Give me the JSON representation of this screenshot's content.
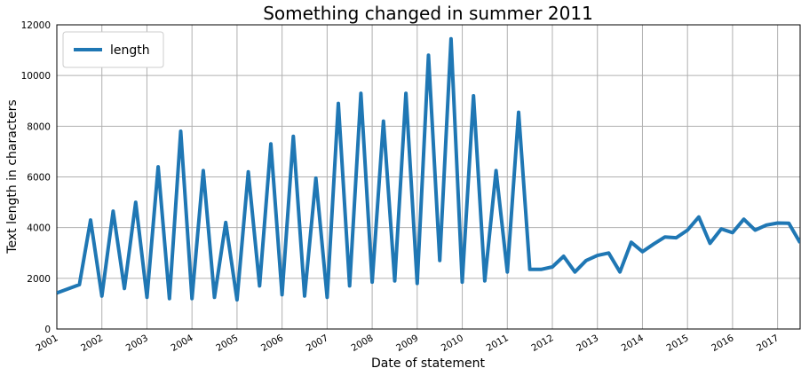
{
  "chart_data": {
    "type": "line",
    "title": "Something changed in summer 2011",
    "xlabel": "Date of statement",
    "ylabel": "Text length in characters",
    "xlim": [
      2001.0,
      2017.5
    ],
    "ylim": [
      0,
      12000
    ],
    "x_tick_labels": [
      "2001",
      "2002",
      "2003",
      "2004",
      "2005",
      "2006",
      "2007",
      "2008",
      "2009",
      "2010",
      "2011",
      "2012",
      "2013",
      "2014",
      "2015",
      "2016",
      "2017"
    ],
    "y_tick_labels": [
      "0",
      "2000",
      "4000",
      "6000",
      "8000",
      "10000",
      "12000"
    ],
    "grid": true,
    "legend_position": "top-left",
    "series": [
      {
        "name": "length",
        "color": "#1f77b4",
        "points": [
          [
            2001.0,
            1420
          ],
          [
            2001.5,
            1750
          ],
          [
            2001.75,
            4300
          ],
          [
            2002.0,
            1300
          ],
          [
            2002.25,
            4650
          ],
          [
            2002.5,
            1600
          ],
          [
            2002.75,
            5000
          ],
          [
            2003.0,
            1250
          ],
          [
            2003.25,
            6400
          ],
          [
            2003.5,
            1200
          ],
          [
            2003.75,
            7800
          ],
          [
            2004.0,
            1200
          ],
          [
            2004.25,
            6250
          ],
          [
            2004.5,
            1250
          ],
          [
            2004.75,
            4200
          ],
          [
            2005.0,
            1150
          ],
          [
            2005.25,
            6200
          ],
          [
            2005.5,
            1700
          ],
          [
            2005.75,
            7300
          ],
          [
            2006.0,
            1350
          ],
          [
            2006.25,
            7600
          ],
          [
            2006.5,
            1300
          ],
          [
            2006.75,
            5950
          ],
          [
            2007.0,
            1250
          ],
          [
            2007.25,
            8900
          ],
          [
            2007.5,
            1700
          ],
          [
            2007.75,
            9300
          ],
          [
            2008.0,
            1850
          ],
          [
            2008.25,
            8200
          ],
          [
            2008.5,
            1900
          ],
          [
            2008.75,
            9300
          ],
          [
            2009.0,
            1800
          ],
          [
            2009.25,
            10800
          ],
          [
            2009.5,
            2700
          ],
          [
            2009.75,
            11450
          ],
          [
            2010.0,
            1850
          ],
          [
            2010.25,
            9200
          ],
          [
            2010.5,
            1900
          ],
          [
            2010.75,
            6250
          ],
          [
            2011.0,
            2250
          ],
          [
            2011.25,
            8550
          ],
          [
            2011.5,
            2350
          ],
          [
            2011.75,
            2350
          ],
          [
            2012.0,
            2450
          ],
          [
            2012.25,
            2870
          ],
          [
            2012.5,
            2250
          ],
          [
            2012.75,
            2700
          ],
          [
            2013.0,
            2900
          ],
          [
            2013.25,
            3000
          ],
          [
            2013.5,
            2250
          ],
          [
            2013.75,
            3420
          ],
          [
            2014.0,
            3050
          ],
          [
            2014.25,
            3350
          ],
          [
            2014.5,
            3630
          ],
          [
            2014.75,
            3600
          ],
          [
            2015.0,
            3900
          ],
          [
            2015.25,
            4420
          ],
          [
            2015.5,
            3380
          ],
          [
            2015.75,
            3950
          ],
          [
            2016.0,
            3800
          ],
          [
            2016.25,
            4330
          ],
          [
            2016.5,
            3900
          ],
          [
            2016.75,
            4100
          ],
          [
            2017.0,
            4180
          ],
          [
            2017.25,
            4170
          ],
          [
            2017.5,
            3400
          ]
        ]
      }
    ]
  }
}
